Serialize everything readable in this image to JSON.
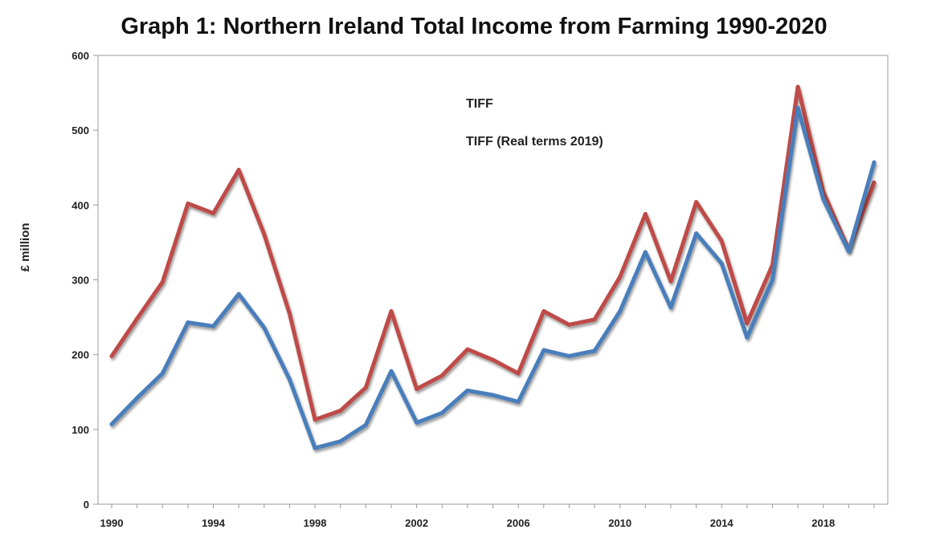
{
  "chart_data": {
    "type": "line",
    "title": "Graph 1: Northern Ireland Total Income from Farming 1990-2020",
    "xlabel": "",
    "ylabel": "£ million",
    "ylim": [
      0,
      600
    ],
    "xlim": [
      1990,
      2020
    ],
    "yticks": [
      0,
      100,
      200,
      300,
      400,
      500,
      600
    ],
    "xticks": [
      1990,
      1994,
      1998,
      2002,
      2006,
      2010,
      2014,
      2018
    ],
    "grid": false,
    "legend_position": "top-center",
    "x": [
      1990,
      1991,
      1992,
      1993,
      1994,
      1995,
      1996,
      1997,
      1998,
      1999,
      2000,
      2001,
      2002,
      2003,
      2004,
      2005,
      2006,
      2007,
      2008,
      2009,
      2010,
      2011,
      2012,
      2013,
      2014,
      2015,
      2016,
      2017,
      2018,
      2019,
      2020
    ],
    "series": [
      {
        "name": "TIFF",
        "color": "#4a7ebb",
        "values": [
          107,
          142,
          175,
          243,
          238,
          281,
          236,
          167,
          75,
          84,
          106,
          178,
          109,
          122,
          152,
          146,
          137,
          206,
          198,
          205,
          258,
          337,
          263,
          362,
          322,
          223,
          300,
          530,
          408,
          338,
          457
        ]
      },
      {
        "name": "TIFF (Real terms 2019)",
        "color": "#be4b48",
        "values": [
          198,
          248,
          297,
          402,
          389,
          447,
          361,
          255,
          113,
          125,
          156,
          258,
          154,
          172,
          207,
          193,
          175,
          258,
          240,
          247,
          304,
          388,
          298,
          404,
          352,
          242,
          320,
          558,
          418,
          340,
          430
        ]
      }
    ]
  }
}
